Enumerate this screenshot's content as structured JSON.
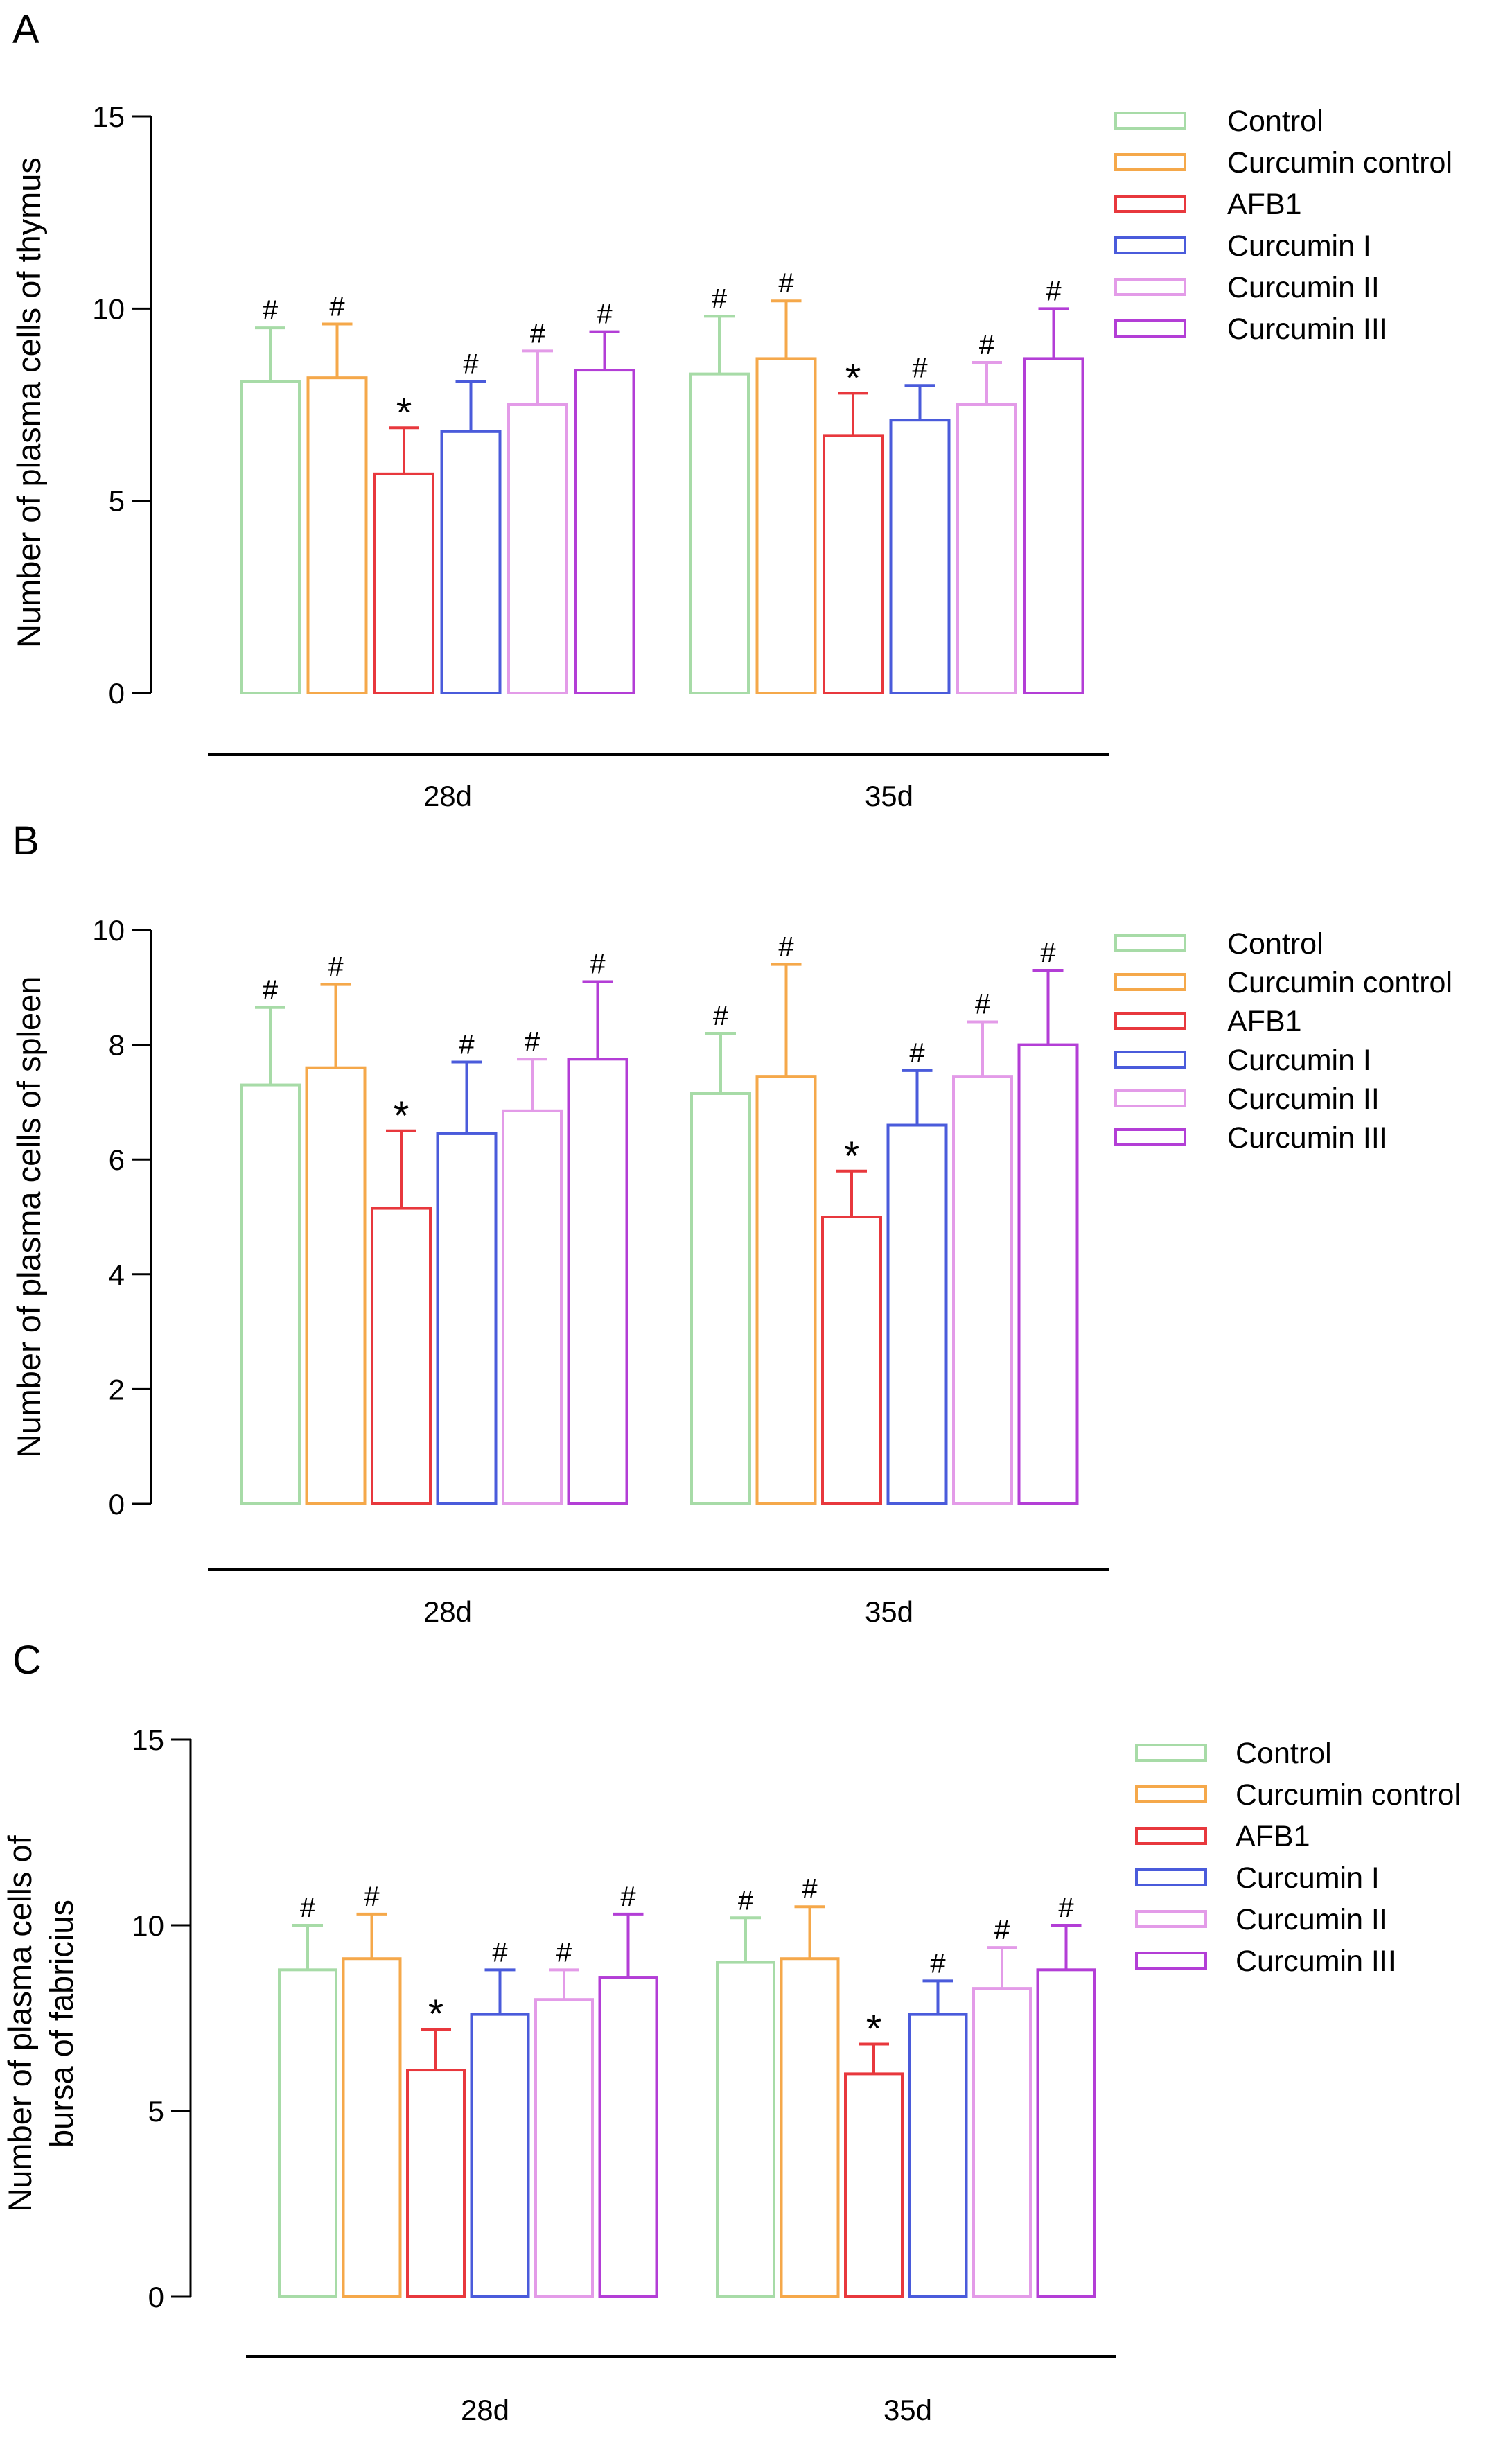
{
  "chart_data": [
    {
      "panel": "A",
      "type": "bar",
      "ylabel": "Number of plasma cells of thymus",
      "ylabel_lines": [
        "Number of plasma cells of thymus"
      ],
      "ylim": [
        0,
        15
      ],
      "yticks": [
        0,
        5,
        10,
        15
      ],
      "categories": [
        "28d",
        "35d"
      ],
      "legend": "top-right",
      "series": [
        {
          "name": "Control",
          "color": "#a7dba7",
          "values": [
            8.1,
            8.3
          ],
          "errors": [
            1.4,
            1.5
          ],
          "markers": [
            "#",
            "#"
          ]
        },
        {
          "name": "Curcumin control",
          "color": "#f5a84a",
          "values": [
            8.2,
            8.7
          ],
          "errors": [
            1.4,
            1.5
          ],
          "markers": [
            "#",
            "#"
          ]
        },
        {
          "name": "AFB1",
          "color": "#e8383d",
          "values": [
            5.7,
            6.7
          ],
          "errors": [
            1.2,
            1.1
          ],
          "markers": [
            "*",
            "*"
          ]
        },
        {
          "name": "Curcumin I",
          "color": "#4a5bdb",
          "values": [
            6.8,
            7.1
          ],
          "errors": [
            1.3,
            0.9
          ],
          "markers": [
            "#",
            "#"
          ]
        },
        {
          "name": "Curcumin II",
          "color": "#e39be8",
          "values": [
            7.5,
            7.5
          ],
          "errors": [
            1.4,
            1.1
          ],
          "markers": [
            "#",
            "#"
          ]
        },
        {
          "name": "Curcumin III",
          "color": "#b33ed6",
          "values": [
            8.4,
            8.7
          ],
          "errors": [
            1.0,
            1.3
          ],
          "markers": [
            "#",
            "#"
          ]
        }
      ]
    },
    {
      "panel": "B",
      "type": "bar",
      "ylabel": "Number of plasma cells of spleen",
      "ylabel_lines": [
        "Number of plasma cells of spleen"
      ],
      "ylim": [
        0,
        10
      ],
      "yticks": [
        0,
        2,
        4,
        6,
        8,
        10
      ],
      "categories": [
        "28d",
        "35d"
      ],
      "legend": "top-right",
      "series": [
        {
          "name": "Control",
          "color": "#a7dba7",
          "values": [
            7.3,
            7.15
          ],
          "errors": [
            1.35,
            1.05
          ],
          "markers": [
            "#",
            "#"
          ]
        },
        {
          "name": "Curcumin control",
          "color": "#f5a84a",
          "values": [
            7.6,
            7.45
          ],
          "errors": [
            1.45,
            1.95
          ],
          "markers": [
            "#",
            "#"
          ]
        },
        {
          "name": "AFB1",
          "color": "#e8383d",
          "values": [
            5.15,
            5.0
          ],
          "errors": [
            1.35,
            0.8
          ],
          "markers": [
            "*",
            "*"
          ]
        },
        {
          "name": "Curcumin I",
          "color": "#4a5bdb",
          "values": [
            6.45,
            6.6
          ],
          "errors": [
            1.25,
            0.95
          ],
          "markers": [
            "#",
            "#"
          ]
        },
        {
          "name": "Curcumin II",
          "color": "#e39be8",
          "values": [
            6.85,
            7.45
          ],
          "errors": [
            0.9,
            0.95
          ],
          "markers": [
            "#",
            "#"
          ]
        },
        {
          "name": "Curcumin III",
          "color": "#b33ed6",
          "values": [
            7.75,
            8.0
          ],
          "errors": [
            1.35,
            1.3
          ],
          "markers": [
            "#",
            "#"
          ]
        }
      ]
    },
    {
      "panel": "C",
      "type": "bar",
      "ylabel": "Number of plasma cells of bursa of fabricius",
      "ylabel_lines": [
        "Number of plasma cells of",
        "bursa of fabricius"
      ],
      "ylim": [
        0,
        15
      ],
      "yticks": [
        0,
        5,
        10,
        15
      ],
      "categories": [
        "28d",
        "35d"
      ],
      "legend": "top-right",
      "series": [
        {
          "name": "Control",
          "color": "#a7dba7",
          "values": [
            8.8,
            9.0
          ],
          "errors": [
            1.2,
            1.2
          ],
          "markers": [
            "#",
            "#"
          ]
        },
        {
          "name": "Curcumin control",
          "color": "#f5a84a",
          "values": [
            9.1,
            9.1
          ],
          "errors": [
            1.2,
            1.4
          ],
          "markers": [
            "#",
            "#"
          ]
        },
        {
          "name": "AFB1",
          "color": "#e8383d",
          "values": [
            6.1,
            6.0
          ],
          "errors": [
            1.1,
            0.8
          ],
          "markers": [
            "*",
            "*"
          ]
        },
        {
          "name": "Curcumin I",
          "color": "#4a5bdb",
          "values": [
            7.6,
            7.6
          ],
          "errors": [
            1.2,
            0.9
          ],
          "markers": [
            "#",
            "#"
          ]
        },
        {
          "name": "Curcumin II",
          "color": "#e39be8",
          "values": [
            8.0,
            8.3
          ],
          "errors": [
            0.8,
            1.1
          ],
          "markers": [
            "#",
            "#"
          ]
        },
        {
          "name": "Curcumin III",
          "color": "#b33ed6",
          "values": [
            8.6,
            8.8
          ],
          "errors": [
            1.7,
            1.2
          ],
          "markers": [
            "#",
            "#"
          ]
        }
      ]
    }
  ]
}
